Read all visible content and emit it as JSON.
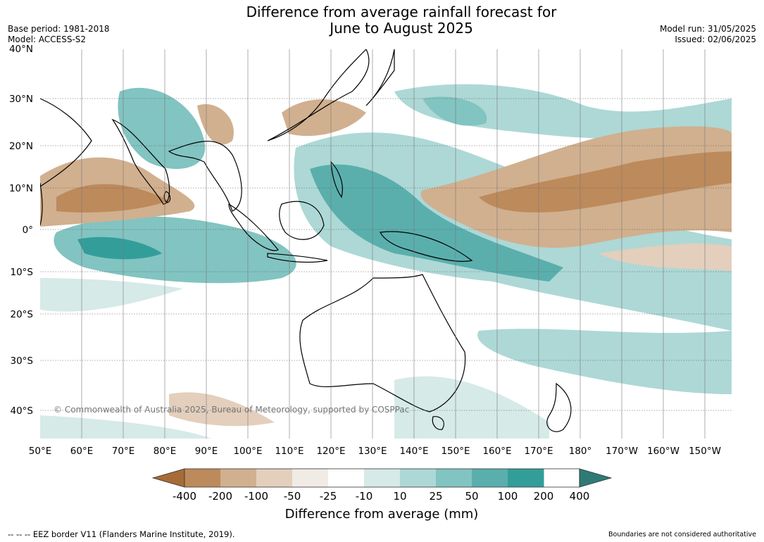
{
  "title_line1": "Difference from average rainfall forecast for",
  "title_line2": "June to August 2025",
  "base_period": "Base period: 1981-2018",
  "model": "Model: ACCESS-S2",
  "model_run": "Model run: 31/05/2025",
  "issued": "Issued: 02/06/2025",
  "copyright": "© Commonwealth of Australia 2025, Bureau of Meteorology, supported by COSPPac",
  "lat_labels": [
    "40°N",
    "30°N",
    "20°N",
    "10°N",
    "0°",
    "10°S",
    "20°S",
    "30°S",
    "40°S"
  ],
  "lon_labels": [
    "50°E",
    "60°E",
    "70°E",
    "80°E",
    "90°E",
    "100°E",
    "110°E",
    "120°E",
    "130°E",
    "140°E",
    "150°E",
    "160°E",
    "170°E",
    "180°",
    "170°W",
    "160°W",
    "150°W"
  ],
  "colorbar": {
    "ticks": [
      "-400",
      "-200",
      "-100",
      "-50",
      "-25",
      "-10",
      "10",
      "25",
      "50",
      "100",
      "200",
      "400"
    ],
    "colors": [
      "#a86b35",
      "#bd8a5c",
      "#d1b08f",
      "#e3cfbc",
      "#f1ebe6",
      "#ffffff",
      "#d6eae8",
      "#add8d6",
      "#82c4c1",
      "#5aafad",
      "#339e99",
      "#2e7b76"
    ],
    "label": "Difference from average (mm)"
  },
  "footer_left": "-- -- -- EEZ border V11 (Flanders Marine Institute, 2019).",
  "footer_right": "Boundaries are not considered authoritative"
}
